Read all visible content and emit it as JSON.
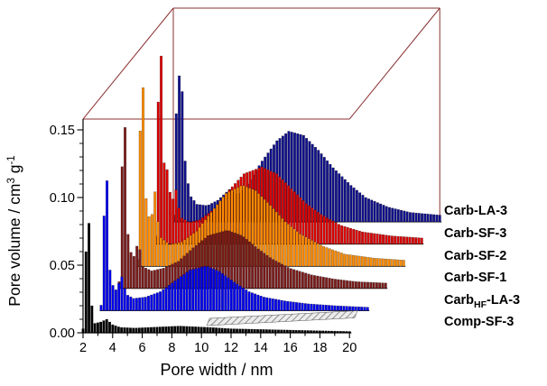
{
  "chart_data": {
    "type": "bar",
    "style": "3d-waterfall-pore-size-distribution",
    "series_order": "index 0 = frontmost (bottom) curve, index 5 = backmost (top) curve",
    "xlabel": "Pore width / nm",
    "ylabel": "Pore volume / cm³ g⁻¹",
    "ylabel_parts": {
      "p1": "Pore volume / cm",
      "p2": "3",
      "p3": " g",
      "p4": "-1"
    },
    "xlim": [
      2,
      20
    ],
    "ylim": [
      0,
      0.15
    ],
    "x_ticks": [
      2,
      4,
      6,
      8,
      10,
      12,
      14,
      16,
      18,
      20
    ],
    "y_ticks_values": [
      0,
      0.05,
      0.1,
      0.15
    ],
    "y_ticks_labels": [
      "0.00",
      "0.05",
      "0.10",
      "0.15"
    ],
    "grid": false,
    "legend_position": "right of each curve baseline",
    "frame_color": "#8B3232",
    "axis_color": "#000000",
    "background": "#FFFFFF",
    "floor_hatch": true,
    "series": [
      {
        "name": "Comp-SF-3",
        "color": "#000000",
        "peak_summary": {
          "micropore_peak_nm": 2.4,
          "micropore_peak_value": 0.081,
          "mesopore_peak_nm": 8.5,
          "mesopore_peak_value": 0.005
        },
        "points": [
          [
            2,
            0.003
          ],
          [
            2.2,
            0.06
          ],
          [
            2.4,
            0.081
          ],
          [
            2.6,
            0.02
          ],
          [
            2.8,
            0.007
          ],
          [
            3.2,
            0.008
          ],
          [
            3.6,
            0.01
          ],
          [
            4,
            0.006
          ],
          [
            4.5,
            0.004
          ],
          [
            5.5,
            0.0035
          ],
          [
            6.5,
            0.004
          ],
          [
            7.5,
            0.0045
          ],
          [
            8.5,
            0.005
          ],
          [
            9.5,
            0.0045
          ],
          [
            10.5,
            0.004
          ],
          [
            12,
            0.003
          ],
          [
            14,
            0.0025
          ],
          [
            16,
            0.002
          ],
          [
            18,
            0.0015
          ],
          [
            20,
            0.001
          ]
        ]
      },
      {
        "name": "CarbHF-LA-3",
        "label_pre": "Carb",
        "label_sub": "HF",
        "label_post": "-LA-3",
        "color": "#0000EE",
        "peak_summary": {
          "micropore_peak_nm": 2.4,
          "micropore_peak_value": 0.096,
          "mesopore_peak_nm": 9.1,
          "mesopore_peak_value": 0.033
        },
        "points": [
          [
            2,
            0.004
          ],
          [
            2.2,
            0.07
          ],
          [
            2.4,
            0.096
          ],
          [
            2.6,
            0.03
          ],
          [
            2.9,
            0.013
          ],
          [
            3.4,
            0.025
          ],
          [
            3.7,
            0.012
          ],
          [
            4.2,
            0.009
          ],
          [
            5,
            0.01
          ],
          [
            6,
            0.014
          ],
          [
            7,
            0.022
          ],
          [
            8,
            0.03
          ],
          [
            9.1,
            0.033
          ],
          [
            10,
            0.029
          ],
          [
            11,
            0.021
          ],
          [
            12,
            0.014
          ],
          [
            13,
            0.01
          ],
          [
            14.5,
            0.007
          ],
          [
            16,
            0.005
          ],
          [
            18,
            0.0035
          ],
          [
            20,
            0.0025
          ]
        ]
      },
      {
        "name": "Carb-SF-1",
        "color": "#7B1B1B",
        "peak_summary": {
          "micropore_peak_nm": 2.4,
          "micropore_peak_value": 0.119,
          "mesopore_peak_nm": 9.3,
          "mesopore_peak_value": 0.043
        },
        "points": [
          [
            2,
            0.005
          ],
          [
            2.2,
            0.09
          ],
          [
            2.4,
            0.119
          ],
          [
            2.6,
            0.04
          ],
          [
            2.9,
            0.02
          ],
          [
            3.3,
            0.035
          ],
          [
            3.6,
            0.016
          ],
          [
            4.2,
            0.013
          ],
          [
            5,
            0.015
          ],
          [
            6,
            0.02
          ],
          [
            7,
            0.03
          ],
          [
            8,
            0.039
          ],
          [
            9.3,
            0.043
          ],
          [
            10.3,
            0.039
          ],
          [
            11.3,
            0.03
          ],
          [
            12.3,
            0.022
          ],
          [
            13.5,
            0.015
          ],
          [
            15,
            0.01
          ],
          [
            16.5,
            0.007
          ],
          [
            18,
            0.005
          ],
          [
            20,
            0.004
          ]
        ]
      },
      {
        "name": "Carb-SF-2",
        "color": "#FF8C00",
        "peak_summary": {
          "micropore_peak_nm": 2.4,
          "micropore_peak_value": 0.132,
          "mesopore_peak_nm": 9.1,
          "mesopore_peak_value": 0.06
        },
        "points": [
          [
            2,
            0.005
          ],
          [
            2.2,
            0.1
          ],
          [
            2.4,
            0.132
          ],
          [
            2.6,
            0.05
          ],
          [
            2.9,
            0.03
          ],
          [
            3.2,
            0.055
          ],
          [
            3.5,
            0.022
          ],
          [
            4.2,
            0.016
          ],
          [
            5,
            0.018
          ],
          [
            6,
            0.026
          ],
          [
            7,
            0.04
          ],
          [
            8,
            0.054
          ],
          [
            9.1,
            0.06
          ],
          [
            10,
            0.056
          ],
          [
            11,
            0.045
          ],
          [
            12,
            0.033
          ],
          [
            13,
            0.024
          ],
          [
            14.5,
            0.015
          ],
          [
            16,
            0.009
          ],
          [
            18,
            0.006
          ],
          [
            20,
            0.0045
          ]
        ]
      },
      {
        "name": "Carb-SF-3",
        "color": "#DD0000",
        "peak_summary": {
          "micropore_peak_nm": 2.4,
          "micropore_peak_value": 0.139,
          "mesopore_peak_nm": 9.2,
          "mesopore_peak_value": 0.057
        },
        "points": [
          [
            2,
            0.006
          ],
          [
            2.2,
            0.105
          ],
          [
            2.4,
            0.139
          ],
          [
            2.6,
            0.06
          ],
          [
            2.8,
            0.055
          ],
          [
            3.1,
            0.03
          ],
          [
            3.4,
            0.04
          ],
          [
            3.7,
            0.02
          ],
          [
            4.3,
            0.016
          ],
          [
            5,
            0.018
          ],
          [
            6,
            0.026
          ],
          [
            7,
            0.04
          ],
          [
            8,
            0.052
          ],
          [
            9.2,
            0.057
          ],
          [
            10.2,
            0.052
          ],
          [
            11.2,
            0.041
          ],
          [
            12.2,
            0.03
          ],
          [
            13.2,
            0.022
          ],
          [
            14.5,
            0.014
          ],
          [
            16,
            0.009
          ],
          [
            18,
            0.006
          ],
          [
            20,
            0.0045
          ]
        ]
      },
      {
        "name": "Carb-LA-3",
        "color": "#10108C",
        "peak_summary": {
          "micropore_peak_nm": 2.5,
          "micropore_peak_value": 0.122,
          "mesopore_peak_nm": 9.8,
          "mesopore_peak_value": 0.067
        },
        "points": [
          [
            2,
            0.005
          ],
          [
            2.2,
            0.08
          ],
          [
            2.5,
            0.122
          ],
          [
            2.8,
            0.045
          ],
          [
            3.1,
            0.02
          ],
          [
            3.6,
            0.013
          ],
          [
            4.3,
            0.012
          ],
          [
            5,
            0.016
          ],
          [
            5.8,
            0.024
          ],
          [
            6.3,
            0.02
          ],
          [
            7,
            0.028
          ],
          [
            8,
            0.045
          ],
          [
            9,
            0.06
          ],
          [
            9.8,
            0.067
          ],
          [
            10.8,
            0.064
          ],
          [
            11.8,
            0.053
          ],
          [
            12.8,
            0.04
          ],
          [
            14,
            0.027
          ],
          [
            15,
            0.018
          ],
          [
            16.5,
            0.011
          ],
          [
            18,
            0.007
          ],
          [
            20,
            0.005
          ]
        ]
      }
    ]
  }
}
